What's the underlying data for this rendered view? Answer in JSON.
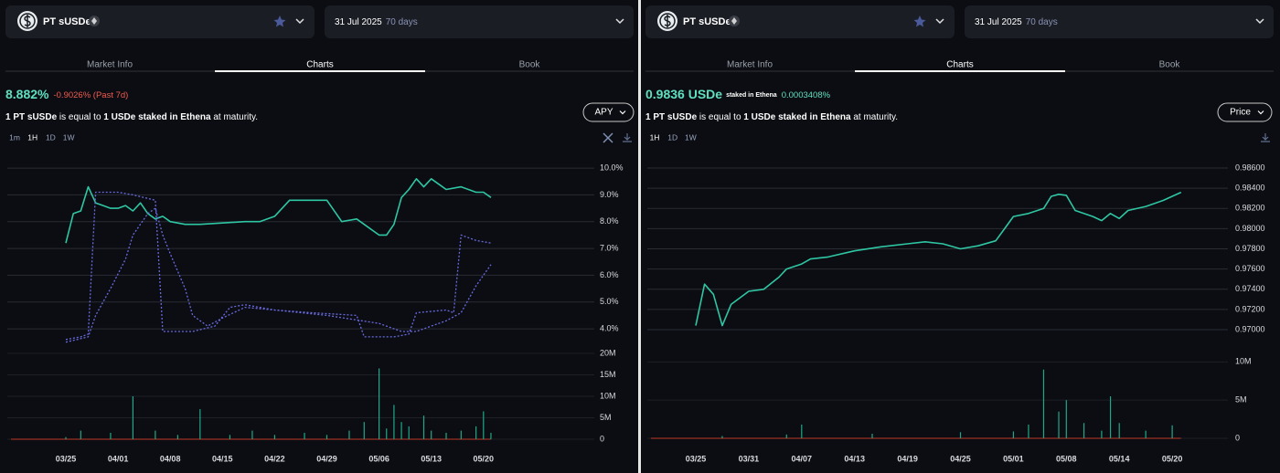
{
  "panels": [
    {
      "market": {
        "name": "PT sUSDe",
        "date": "31 Jul 2025",
        "days": "70 days"
      },
      "tabs": [
        "Market Info",
        "Charts",
        "Book"
      ],
      "headline": {
        "value": "8.882%",
        "change": "-0.9026% (Past 7d)"
      },
      "description": [
        {
          "text": "1 PT sUSDe",
          "bold": true
        },
        {
          "text": " is equal to ",
          "bold": false
        },
        {
          "text": "1 USDe staked in Ethena",
          "bold": true
        },
        {
          "text": " at maturity.",
          "bold": false
        }
      ],
      "metric_selector": "APY",
      "intervals": [
        "1m",
        "1H",
        "1D",
        "1W"
      ],
      "chart_data": {
        "type": "line",
        "grid": true,
        "xticks": [
          "03/25",
          "04/01",
          "04/08",
          "04/15",
          "04/22",
          "04/29",
          "05/06",
          "05/13",
          "05/20"
        ],
        "ylim": [
          3.15,
          10.48
        ],
        "yticks": [
          {
            "value": 4,
            "label": "4.0%"
          },
          {
            "value": 5,
            "label": "5.0%"
          },
          {
            "value": 6,
            "label": "6.0%"
          },
          {
            "value": 7,
            "label": "7.0%"
          },
          {
            "value": 8,
            "label": "8.0%"
          },
          {
            "value": 9,
            "label": "9.0%"
          },
          {
            "value": 10,
            "label": "10.0%"
          }
        ],
        "series": [
          {
            "color": "#2fc6a4",
            "dashed": false,
            "x": [
              "03/25",
              "03/26",
              "03/27",
              "03/28",
              "03/29",
              "03/30",
              "03/31",
              "04/01",
              "04/02",
              "04/03",
              "04/04",
              "04/05",
              "04/06",
              "04/07",
              "04/08",
              "04/10",
              "04/12",
              "04/15",
              "04/18",
              "04/20",
              "04/22",
              "04/24",
              "04/27",
              "04/29",
              "05/01",
              "05/03",
              "05/06",
              "05/07",
              "05/08",
              "05/09",
              "05/10",
              "05/11",
              "05/12",
              "05/13",
              "05/14",
              "05/15",
              "05/17",
              "05/19",
              "05/20",
              "05/21"
            ],
            "values": [
              7.2,
              8.3,
              8.4,
              9.3,
              8.7,
              8.6,
              8.5,
              8.5,
              8.6,
              8.4,
              8.7,
              8.3,
              8.1,
              8.2,
              8.0,
              7.9,
              7.9,
              7.95,
              8.0,
              8.0,
              8.2,
              8.8,
              8.8,
              8.8,
              8.0,
              8.1,
              7.5,
              7.5,
              7.9,
              8.9,
              9.2,
              9.6,
              9.3,
              9.6,
              9.4,
              9.2,
              9.3,
              9.1,
              9.1,
              8.9
            ]
          },
          {
            "color": "#6a6ae0",
            "dashed": true,
            "x": [
              "03/25",
              "03/27",
              "03/28",
              "03/29",
              "04/01",
              "04/03",
              "04/06",
              "04/07",
              "04/11",
              "04/14",
              "04/16",
              "04/18",
              "04/22",
              "04/27",
              "05/03",
              "05/04",
              "05/08",
              "05/10",
              "05/11",
              "05/15",
              "05/16",
              "05/17",
              "05/19",
              "05/21"
            ],
            "values": [
              3.6,
              3.7,
              3.8,
              9.1,
              9.1,
              9.0,
              8.8,
              3.9,
              3.9,
              4.1,
              4.8,
              4.9,
              4.7,
              4.6,
              4.5,
              3.7,
              3.7,
              3.8,
              4.6,
              4.7,
              4.6,
              7.5,
              7.3,
              7.2
            ]
          },
          {
            "color": "#6a6ae0",
            "dashed": true,
            "x": [
              "03/25",
              "03/28",
              "03/29",
              "03/31",
              "04/02",
              "04/03",
              "04/05",
              "04/06",
              "04/07",
              "04/08",
              "04/10",
              "04/11",
              "04/13",
              "04/15",
              "04/18",
              "04/22",
              "04/29",
              "05/06",
              "05/09",
              "05/11",
              "05/13",
              "05/15",
              "05/17",
              "05/19",
              "05/21"
            ],
            "values": [
              3.5,
              3.7,
              4.5,
              5.5,
              6.6,
              7.5,
              8.3,
              8.5,
              7.5,
              6.8,
              5.5,
              4.5,
              4.1,
              4.4,
              4.8,
              4.7,
              4.5,
              4.2,
              3.9,
              3.9,
              4.1,
              4.3,
              4.6,
              5.6,
              6.4
            ]
          }
        ],
        "volume": {
          "color": "#1fa888",
          "x": [
            "03/25",
            "03/27",
            "03/31",
            "04/03",
            "04/06",
            "04/09",
            "04/12",
            "04/16",
            "04/19",
            "04/22",
            "04/26",
            "04/29",
            "05/02",
            "05/04",
            "05/06",
            "05/07",
            "05/08",
            "05/09",
            "05/10",
            "05/12",
            "05/13",
            "05/15",
            "05/17",
            "05/19",
            "05/20",
            "05/21"
          ],
          "values": [
            500000,
            2000000,
            1500000,
            10000000,
            2000000,
            1000000,
            7000000,
            1000000,
            2000000,
            1000000,
            1500000,
            1000000,
            2000000,
            4000000,
            16500000,
            2500000,
            8000000,
            4000000,
            3000000,
            5500000,
            2000000,
            1500000,
            2000000,
            3000000,
            6500000,
            1500000
          ]
        },
        "volume_ylim": [
          0,
          20000000
        ],
        "volume_ticks": [
          0,
          {
            "value": 5000000,
            "label": "5M"
          },
          {
            "value": 10000000,
            "label": "10M"
          },
          {
            "value": 15000000,
            "label": "15M"
          },
          {
            "value": 20000000,
            "label": "20M"
          }
        ]
      }
    },
    {
      "market": {
        "name": "PT sUSDe",
        "date": "31 Jul 2025",
        "days": "70 days"
      },
      "tabs": [
        "Market Info",
        "Charts",
        "Book"
      ],
      "headline": {
        "value": "0.9836 USDe",
        "note": "staked in Ethena",
        "change": "0.0003408%"
      },
      "description": [
        {
          "text": "1 PT sUSDe",
          "bold": true
        },
        {
          "text": " is equal to ",
          "bold": false
        },
        {
          "text": "1 USDe staked in Ethena",
          "bold": true
        },
        {
          "text": " at maturity.",
          "bold": false
        }
      ],
      "metric_selector": "Price",
      "intervals": [
        "1H",
        "1D",
        "1W"
      ],
      "chart_data": {
        "type": "line",
        "grid": true,
        "xticks": [
          "03/25",
          "03/31",
          "04/07",
          "04/13",
          "04/19",
          "04/25",
          "05/01",
          "05/08",
          "05/14",
          "05/20"
        ],
        "ylim": [
          0.96783,
          0.98727
        ],
        "yticks": [
          {
            "value": 0.97,
            "label": "0.97000"
          },
          {
            "value": 0.972,
            "label": "0.97200"
          },
          {
            "value": 0.974,
            "label": "0.97400"
          },
          {
            "value": 0.976,
            "label": "0.97600"
          },
          {
            "value": 0.978,
            "label": "0.97800"
          },
          {
            "value": 0.98,
            "label": "0.98000"
          },
          {
            "value": 0.982,
            "label": "0.98200"
          },
          {
            "value": 0.984,
            "label": "0.98400"
          },
          {
            "value": 0.986,
            "label": "0.98600"
          }
        ],
        "series": [
          {
            "color": "#2fc6a4",
            "dashed": false,
            "x": [
              "03/25",
              "03/26",
              "03/27",
              "03/28",
              "03/29",
              "03/31",
              "04/02",
              "04/04",
              "04/05",
              "04/07",
              "04/08",
              "04/10",
              "04/13",
              "04/16",
              "04/19",
              "04/21",
              "04/23",
              "04/25",
              "04/27",
              "04/29",
              "04/30",
              "05/01",
              "05/03",
              "05/05",
              "05/06",
              "05/07",
              "05/08",
              "05/09",
              "05/11",
              "05/12",
              "05/13",
              "05/14",
              "05/15",
              "05/17",
              "05/19",
              "05/20",
              "05/21"
            ],
            "values": [
              0.9704,
              0.9745,
              0.9735,
              0.9704,
              0.9725,
              0.9738,
              0.974,
              0.9752,
              0.976,
              0.9765,
              0.977,
              0.9772,
              0.9778,
              0.9782,
              0.9785,
              0.9787,
              0.9785,
              0.978,
              0.9783,
              0.9788,
              0.98,
              0.9812,
              0.9815,
              0.982,
              0.9832,
              0.9834,
              0.9833,
              0.9818,
              0.9812,
              0.9808,
              0.9815,
              0.981,
              0.9818,
              0.9822,
              0.9828,
              0.9832,
              0.9836
            ]
          }
        ],
        "volume": {
          "color": "#1fa888",
          "x": [
            "03/28",
            "04/05",
            "04/07",
            "04/15",
            "04/25",
            "05/01",
            "05/03",
            "05/05",
            "05/07",
            "05/08",
            "05/10",
            "05/12",
            "05/13",
            "05/14",
            "05/17",
            "05/20"
          ],
          "values": [
            300000,
            500000,
            1800000,
            600000,
            800000,
            900000,
            1800000,
            9000000,
            3500000,
            5000000,
            2000000,
            1000000,
            5500000,
            2000000,
            1000000,
            1700000
          ]
        },
        "volume_ylim": [
          0,
          11000000
        ],
        "volume_ticks": [
          0,
          {
            "value": 5000000,
            "label": "5M"
          },
          {
            "value": 10000000,
            "label": "10M"
          }
        ]
      }
    }
  ]
}
